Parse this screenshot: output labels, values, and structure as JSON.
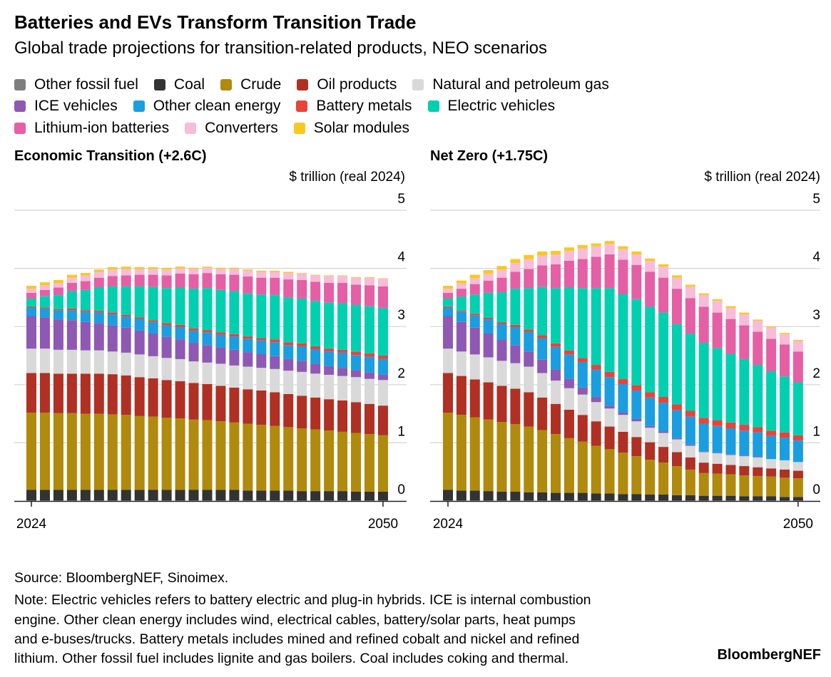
{
  "title": "Batteries and EVs Transform Transition Trade",
  "subtitle": "Global trade projections for transition-related products, NEO scenarios",
  "legend": [
    {
      "name": "Other fossil fuel",
      "color": "#7f7f7f"
    },
    {
      "name": "Coal",
      "color": "#333333"
    },
    {
      "name": "Crude",
      "color": "#b08a0c"
    },
    {
      "name": "Oil products",
      "color": "#b03024"
    },
    {
      "name": "Natural and petroleum gas",
      "color": "#d9d9d9"
    },
    {
      "name": "ICE vehicles",
      "color": "#8e59b3"
    },
    {
      "name": "Other clean energy",
      "color": "#1a9ee0"
    },
    {
      "name": "Battery metals",
      "color": "#e8443a"
    },
    {
      "name": "Electric vehicles",
      "color": "#00d0b0"
    },
    {
      "name": "Lithium-ion batteries",
      "color": "#e55fa5"
    },
    {
      "name": "Converters",
      "color": "#f7bcd9"
    },
    {
      "name": "Solar modules",
      "color": "#f9c81e"
    }
  ],
  "footer": {
    "source": "Source: BloombergNEF, Sinoimex.",
    "note_lines": [
      "Note: Electric vehicles refers to battery electric and plug-in hybrids. ICE is internal combustion",
      "engine. Other clean energy includes wind, electrical cables, battery/solar parts, heat pumps",
      "and e-buses/trucks. Battery metals includes mined and refined cobalt and nickel and refined",
      "lithium. Other fossil fuel includes lignite and gas boilers. Coal includes coking and thermal."
    ],
    "brand": "BloombergNEF"
  },
  "chart_data": [
    {
      "type": "bar",
      "stacked": true,
      "title": "Economic Transition (+2.6C)",
      "ylabel": "$ trillion (real 2024)",
      "ylim": [
        0,
        5
      ],
      "yticks": [
        "0",
        "1",
        "2",
        "3",
        "4",
        "5"
      ],
      "x_start": 2024,
      "x_end": 2050,
      "xtick_labels": [
        "2024",
        "2050"
      ],
      "grid": true,
      "series": [
        {
          "name": "Other fossil fuel",
          "values": [
            0.01,
            0.01,
            0.01,
            0.01,
            0.01,
            0.01,
            0.01,
            0.01,
            0.01,
            0.01,
            0.01,
            0.01,
            0.01,
            0.01,
            0.01,
            0.01,
            0.01,
            0.01,
            0.01,
            0.01,
            0.01,
            0.01,
            0.01,
            0.01,
            0.01,
            0.01,
            0.01
          ]
        },
        {
          "name": "Coal",
          "values": [
            0.18,
            0.18,
            0.18,
            0.18,
            0.18,
            0.18,
            0.18,
            0.18,
            0.18,
            0.18,
            0.18,
            0.18,
            0.18,
            0.18,
            0.18,
            0.18,
            0.17,
            0.17,
            0.17,
            0.17,
            0.16,
            0.16,
            0.16,
            0.16,
            0.15,
            0.15,
            0.15
          ]
        },
        {
          "name": "Crude",
          "values": [
            1.33,
            1.33,
            1.32,
            1.32,
            1.31,
            1.31,
            1.3,
            1.29,
            1.27,
            1.26,
            1.24,
            1.23,
            1.21,
            1.2,
            1.18,
            1.16,
            1.15,
            1.13,
            1.11,
            1.09,
            1.08,
            1.06,
            1.04,
            1.02,
            1.01,
            0.99,
            0.97
          ]
        },
        {
          "name": "Oil products",
          "values": [
            0.68,
            0.68,
            0.68,
            0.68,
            0.69,
            0.69,
            0.69,
            0.68,
            0.67,
            0.66,
            0.65,
            0.64,
            0.63,
            0.62,
            0.61,
            0.6,
            0.59,
            0.59,
            0.58,
            0.57,
            0.56,
            0.55,
            0.54,
            0.54,
            0.53,
            0.52,
            0.51
          ]
        },
        {
          "name": "Natural and petroleum gas",
          "values": [
            0.42,
            0.42,
            0.41,
            0.41,
            0.4,
            0.4,
            0.39,
            0.39,
            0.39,
            0.38,
            0.38,
            0.38,
            0.37,
            0.37,
            0.38,
            0.38,
            0.39,
            0.39,
            0.4,
            0.4,
            0.41,
            0.41,
            0.42,
            0.42,
            0.43,
            0.43,
            0.44
          ]
        },
        {
          "name": "ICE vehicles",
          "values": [
            0.56,
            0.54,
            0.52,
            0.51,
            0.49,
            0.47,
            0.45,
            0.43,
            0.41,
            0.39,
            0.36,
            0.34,
            0.32,
            0.3,
            0.28,
            0.27,
            0.25,
            0.24,
            0.22,
            0.2,
            0.19,
            0.17,
            0.15,
            0.14,
            0.12,
            0.11,
            0.09
          ]
        },
        {
          "name": "Other clean energy",
          "values": [
            0.14,
            0.15,
            0.16,
            0.17,
            0.17,
            0.18,
            0.19,
            0.19,
            0.2,
            0.2,
            0.2,
            0.21,
            0.21,
            0.22,
            0.22,
            0.23,
            0.23,
            0.23,
            0.24,
            0.24,
            0.25,
            0.25,
            0.25,
            0.26,
            0.26,
            0.27,
            0.27
          ]
        },
        {
          "name": "Battery metals",
          "values": [
            0.02,
            0.02,
            0.02,
            0.03,
            0.03,
            0.03,
            0.03,
            0.03,
            0.03,
            0.03,
            0.04,
            0.04,
            0.04,
            0.04,
            0.04,
            0.04,
            0.04,
            0.04,
            0.05,
            0.05,
            0.05,
            0.05,
            0.05,
            0.05,
            0.06,
            0.06,
            0.06
          ]
        },
        {
          "name": "Electric vehicles",
          "values": [
            0.14,
            0.19,
            0.24,
            0.3,
            0.35,
            0.4,
            0.45,
            0.49,
            0.53,
            0.57,
            0.6,
            0.64,
            0.68,
            0.72,
            0.73,
            0.74,
            0.74,
            0.75,
            0.76,
            0.77,
            0.77,
            0.78,
            0.79,
            0.8,
            0.8,
            0.81,
            0.82
          ]
        },
        {
          "name": "Lithium-ion batteries",
          "values": [
            0.1,
            0.11,
            0.13,
            0.14,
            0.15,
            0.17,
            0.18,
            0.19,
            0.2,
            0.21,
            0.22,
            0.24,
            0.25,
            0.26,
            0.27,
            0.28,
            0.29,
            0.29,
            0.3,
            0.31,
            0.32,
            0.33,
            0.34,
            0.35,
            0.35,
            0.36,
            0.37
          ]
        },
        {
          "name": "Converters",
          "values": [
            0.07,
            0.08,
            0.08,
            0.09,
            0.1,
            0.1,
            0.11,
            0.11,
            0.1,
            0.1,
            0.1,
            0.09,
            0.09,
            0.09,
            0.09,
            0.1,
            0.1,
            0.1,
            0.1,
            0.11,
            0.11,
            0.11,
            0.12,
            0.12,
            0.12,
            0.13,
            0.13
          ]
        },
        {
          "name": "Solar modules",
          "values": [
            0.05,
            0.05,
            0.05,
            0.05,
            0.04,
            0.04,
            0.04,
            0.04,
            0.03,
            0.03,
            0.03,
            0.03,
            0.02,
            0.02,
            0.02,
            0.02,
            0.02,
            0.02,
            0.02,
            0.02,
            0.01,
            0.01,
            0.01,
            0.01,
            0.01,
            0.01,
            0.01
          ]
        }
      ]
    },
    {
      "type": "bar",
      "stacked": true,
      "title": "Net Zero (+1.75C)",
      "ylabel": "$ trillion (real 2024)",
      "ylim": [
        0,
        5
      ],
      "yticks": [
        "0",
        "1",
        "2",
        "3",
        "4",
        "5"
      ],
      "x_start": 2024,
      "x_end": 2050,
      "xtick_labels": [
        "2024",
        "2050"
      ],
      "grid": true,
      "series": [
        {
          "name": "Other fossil fuel",
          "values": [
            0.01,
            0.01,
            0.01,
            0.01,
            0.01,
            0.01,
            0.01,
            0.01,
            0.01,
            0.01,
            0.01,
            0.01,
            0.01,
            0.01,
            0.01,
            0.01,
            0.01,
            0.01,
            0.01,
            0.01,
            0.01,
            0.01,
            0.01,
            0.01,
            0.01,
            0.01,
            0.01
          ]
        },
        {
          "name": "Coal",
          "values": [
            0.18,
            0.17,
            0.17,
            0.16,
            0.15,
            0.15,
            0.14,
            0.14,
            0.13,
            0.13,
            0.13,
            0.12,
            0.12,
            0.11,
            0.11,
            0.1,
            0.1,
            0.09,
            0.09,
            0.08,
            0.08,
            0.08,
            0.07,
            0.07,
            0.07,
            0.06,
            0.06
          ]
        },
        {
          "name": "Crude",
          "values": [
            1.33,
            1.3,
            1.26,
            1.23,
            1.2,
            1.16,
            1.13,
            1.07,
            1.01,
            0.94,
            0.88,
            0.82,
            0.76,
            0.71,
            0.65,
            0.6,
            0.55,
            0.5,
            0.44,
            0.39,
            0.38,
            0.37,
            0.36,
            0.35,
            0.34,
            0.33,
            0.32
          ]
        },
        {
          "name": "Oil products",
          "values": [
            0.68,
            0.67,
            0.65,
            0.64,
            0.62,
            0.61,
            0.59,
            0.56,
            0.52,
            0.49,
            0.46,
            0.42,
            0.39,
            0.36,
            0.33,
            0.3,
            0.27,
            0.24,
            0.21,
            0.18,
            0.17,
            0.16,
            0.16,
            0.15,
            0.14,
            0.14,
            0.13
          ]
        },
        {
          "name": "Natural and petroleum gas",
          "values": [
            0.42,
            0.42,
            0.43,
            0.43,
            0.43,
            0.44,
            0.44,
            0.42,
            0.4,
            0.37,
            0.35,
            0.33,
            0.31,
            0.29,
            0.27,
            0.25,
            0.24,
            0.22,
            0.2,
            0.18,
            0.18,
            0.17,
            0.17,
            0.17,
            0.16,
            0.16,
            0.15
          ]
        },
        {
          "name": "ICE vehicles",
          "values": [
            0.56,
            0.51,
            0.46,
            0.41,
            0.36,
            0.31,
            0.26,
            0.23,
            0.19,
            0.16,
            0.12,
            0.09,
            0.05,
            0.04,
            0.04,
            0.03,
            0.03,
            0.02,
            0.02,
            0.01,
            0.01,
            0.01,
            0.01,
            0.01,
            0.0,
            0.0,
            0.0
          ]
        },
        {
          "name": "Other clean energy",
          "values": [
            0.14,
            0.17,
            0.21,
            0.24,
            0.27,
            0.31,
            0.34,
            0.37,
            0.39,
            0.42,
            0.44,
            0.47,
            0.49,
            0.49,
            0.49,
            0.49,
            0.49,
            0.48,
            0.48,
            0.48,
            0.46,
            0.45,
            0.43,
            0.42,
            0.4,
            0.39,
            0.37
          ]
        },
        {
          "name": "Battery metals",
          "values": [
            0.02,
            0.02,
            0.03,
            0.03,
            0.03,
            0.04,
            0.04,
            0.05,
            0.06,
            0.07,
            0.07,
            0.08,
            0.09,
            0.09,
            0.09,
            0.09,
            0.1,
            0.1,
            0.1,
            0.1,
            0.1,
            0.1,
            0.1,
            0.09,
            0.09,
            0.09,
            0.09
          ]
        },
        {
          "name": "Electric vehicles",
          "values": [
            0.14,
            0.24,
            0.33,
            0.43,
            0.52,
            0.62,
            0.71,
            0.83,
            0.95,
            1.08,
            1.2,
            1.32,
            1.44,
            1.46,
            1.48,
            1.47,
            1.45,
            1.38,
            1.33,
            1.29,
            1.24,
            1.18,
            1.13,
            1.07,
            1.02,
            0.96,
            0.91
          ]
        },
        {
          "name": "Lithium-ion batteries",
          "values": [
            0.1,
            0.14,
            0.18,
            0.21,
            0.25,
            0.29,
            0.33,
            0.37,
            0.41,
            0.46,
            0.5,
            0.54,
            0.58,
            0.59,
            0.59,
            0.6,
            0.6,
            0.61,
            0.61,
            0.62,
            0.61,
            0.6,
            0.58,
            0.57,
            0.56,
            0.55,
            0.53
          ]
        },
        {
          "name": "Converters",
          "values": [
            0.07,
            0.09,
            0.1,
            0.12,
            0.14,
            0.15,
            0.17,
            0.17,
            0.17,
            0.17,
            0.18,
            0.18,
            0.18,
            0.18,
            0.18,
            0.19,
            0.19,
            0.19,
            0.2,
            0.2,
            0.2,
            0.19,
            0.19,
            0.19,
            0.19,
            0.18,
            0.18
          ]
        },
        {
          "name": "Solar modules",
          "values": [
            0.05,
            0.05,
            0.06,
            0.06,
            0.06,
            0.07,
            0.07,
            0.07,
            0.06,
            0.06,
            0.06,
            0.05,
            0.05,
            0.05,
            0.05,
            0.04,
            0.04,
            0.04,
            0.03,
            0.03,
            0.03,
            0.03,
            0.03,
            0.02,
            0.02,
            0.02,
            0.02
          ]
        }
      ]
    }
  ]
}
